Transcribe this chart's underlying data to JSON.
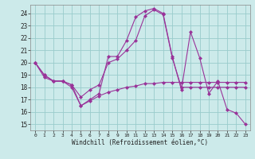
{
  "xlabel": "Windchill (Refroidissement éolien,°C)",
  "bg_color": "#cceaea",
  "line_color": "#993399",
  "grid_color": "#99cccc",
  "xlim": [
    -0.5,
    23.5
  ],
  "ylim": [
    14.5,
    24.7
  ],
  "yticks": [
    15,
    16,
    17,
    18,
    19,
    20,
    21,
    22,
    23,
    24
  ],
  "xticks": [
    0,
    1,
    2,
    3,
    4,
    5,
    6,
    7,
    8,
    9,
    10,
    11,
    12,
    13,
    14,
    15,
    16,
    17,
    18,
    19,
    20,
    21,
    22,
    23
  ],
  "series1_y": [
    20.0,
    19.0,
    18.5,
    18.5,
    18.0,
    16.5,
    17.0,
    17.5,
    20.5,
    20.5,
    21.8,
    23.7,
    24.2,
    24.4,
    24.0,
    20.5,
    17.8,
    22.5,
    20.4,
    17.5,
    18.5,
    16.2,
    15.9,
    15.0
  ],
  "series2_y": [
    20.0,
    18.8,
    18.5,
    18.5,
    18.2,
    17.2,
    17.8,
    18.2,
    20.0,
    20.3,
    21.0,
    21.8,
    23.8,
    24.3,
    23.9,
    20.4,
    18.0,
    18.0,
    18.0,
    18.0,
    18.0,
    18.0,
    18.0,
    18.0
  ],
  "series3_y": [
    20.0,
    19.0,
    18.5,
    18.5,
    18.2,
    16.5,
    16.9,
    17.3,
    17.6,
    17.8,
    18.0,
    18.1,
    18.3,
    18.3,
    18.4,
    18.4,
    18.4,
    18.4,
    18.4,
    18.4,
    18.4,
    18.4,
    18.4,
    18.4
  ]
}
